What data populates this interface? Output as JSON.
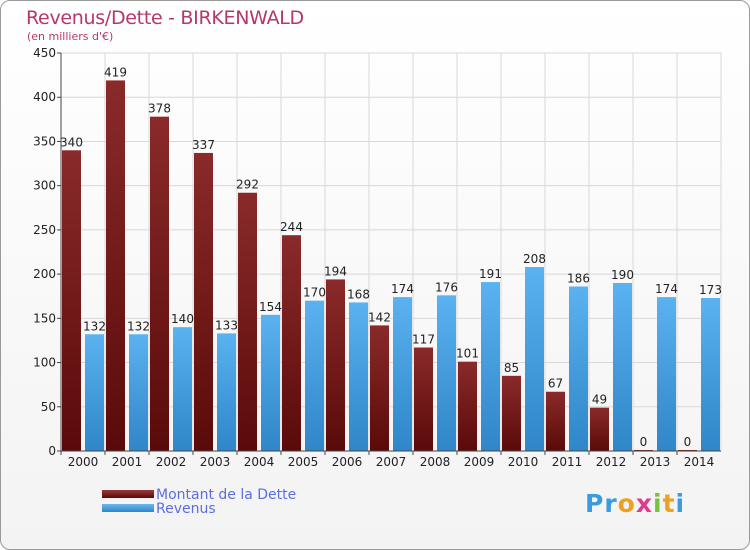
{
  "header": {
    "title": "Revenus/Dette - BIRKENWALD",
    "subtitle": "(en milliers d'€)"
  },
  "legend": {
    "dette": "Montant de la Dette",
    "revenus": "Revenus"
  },
  "logo": {
    "parts": [
      "Pr",
      "o",
      "x",
      "i",
      "t",
      "i"
    ],
    "colors": [
      "#3a9be0",
      "#f0a020",
      "#e03a8a",
      "#7ac142",
      "#f0a020",
      "#3a9be0"
    ]
  },
  "chart_data": {
    "type": "bar",
    "categories": [
      "2000",
      "2001",
      "2002",
      "2003",
      "2004",
      "2005",
      "2006",
      "2007",
      "2008",
      "2009",
      "2010",
      "2011",
      "2012",
      "2013",
      "2014"
    ],
    "series": [
      {
        "name": "Montant de la Dette",
        "color": "#7b1c1c",
        "values": [
          340,
          419,
          378,
          337,
          292,
          244,
          194,
          142,
          117,
          101,
          85,
          67,
          49,
          0,
          0
        ]
      },
      {
        "name": "Revenus",
        "color": "#4aa6e8",
        "values": [
          132,
          132,
          140,
          133,
          154,
          170,
          168,
          174,
          176,
          191,
          208,
          186,
          190,
          174,
          173
        ]
      }
    ],
    "title": "Revenus/Dette - BIRKENWALD",
    "ylabel": "(en milliers d'€)",
    "ylim": [
      0,
      450
    ],
    "yticks": [
      0,
      50,
      100,
      150,
      200,
      250,
      300,
      350,
      400,
      450
    ],
    "grid": true,
    "legend_position": "bottom-left"
  }
}
